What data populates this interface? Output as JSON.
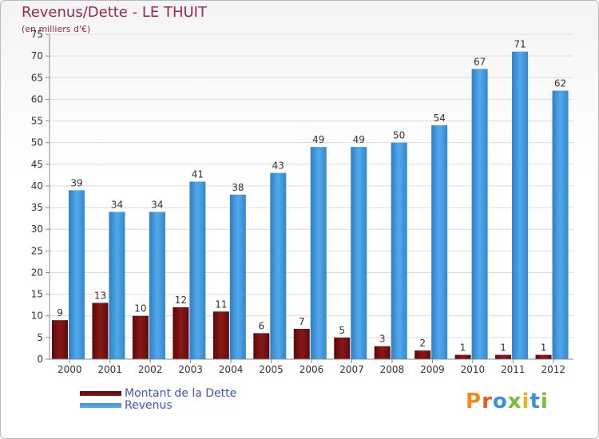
{
  "header": {
    "title": "Revenus/Dette - LE THUIT",
    "subtitle": "(en milliers d'€)"
  },
  "legend": {
    "debt_label": "Montant de la Dette",
    "revenue_label": "Revenus"
  },
  "logo": {
    "letters": [
      "P",
      "r",
      "o",
      "x",
      "i",
      "t",
      "i"
    ]
  },
  "colors": {
    "debt": "#7a1010",
    "revenue": "#3d95d8"
  },
  "chart_data": {
    "type": "bar",
    "title": "Revenus/Dette - LE THUIT",
    "ylabel": "(en milliers d'€)",
    "xlabel": "",
    "ylim": [
      0,
      75
    ],
    "ytick_step": 5,
    "grid": true,
    "legend_position": "bottom-left",
    "categories": [
      "2000",
      "2001",
      "2002",
      "2003",
      "2004",
      "2005",
      "2006",
      "2007",
      "2008",
      "2009",
      "2010",
      "2011",
      "2012"
    ],
    "series": [
      {
        "name": "Montant de la Dette",
        "values": [
          9,
          13,
          10,
          12,
          11,
          6,
          7,
          5,
          3,
          2,
          1,
          1,
          1
        ]
      },
      {
        "name": "Revenus",
        "values": [
          39,
          34,
          34,
          41,
          38,
          43,
          49,
          49,
          50,
          54,
          67,
          71,
          62
        ]
      }
    ]
  }
}
